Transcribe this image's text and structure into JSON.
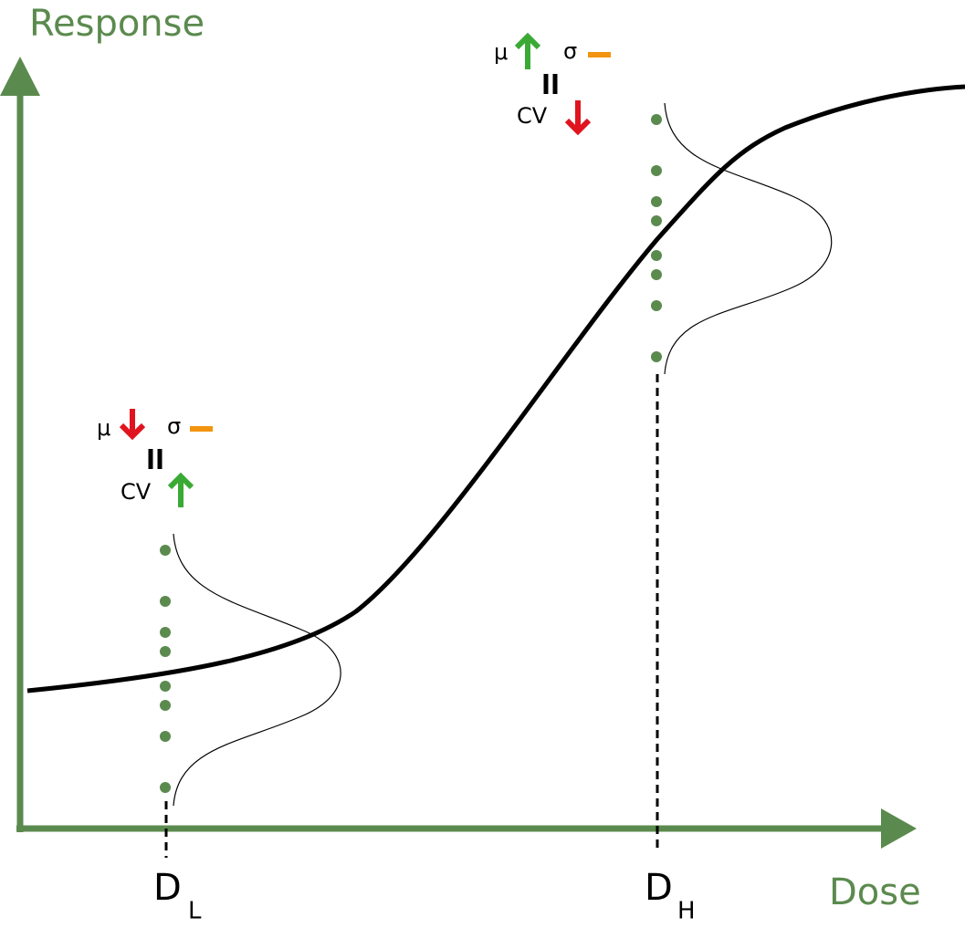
{
  "axes": {
    "y_label": "Response",
    "x_label": "Dose"
  },
  "doses": [
    {
      "label": "D",
      "subscript": "L",
      "mean": "μ",
      "sd": "σ",
      "cv": "CV"
    },
    {
      "label": "D",
      "subscript": "H",
      "mean": "μ",
      "sd": "σ",
      "cv": "CV"
    }
  ]
}
